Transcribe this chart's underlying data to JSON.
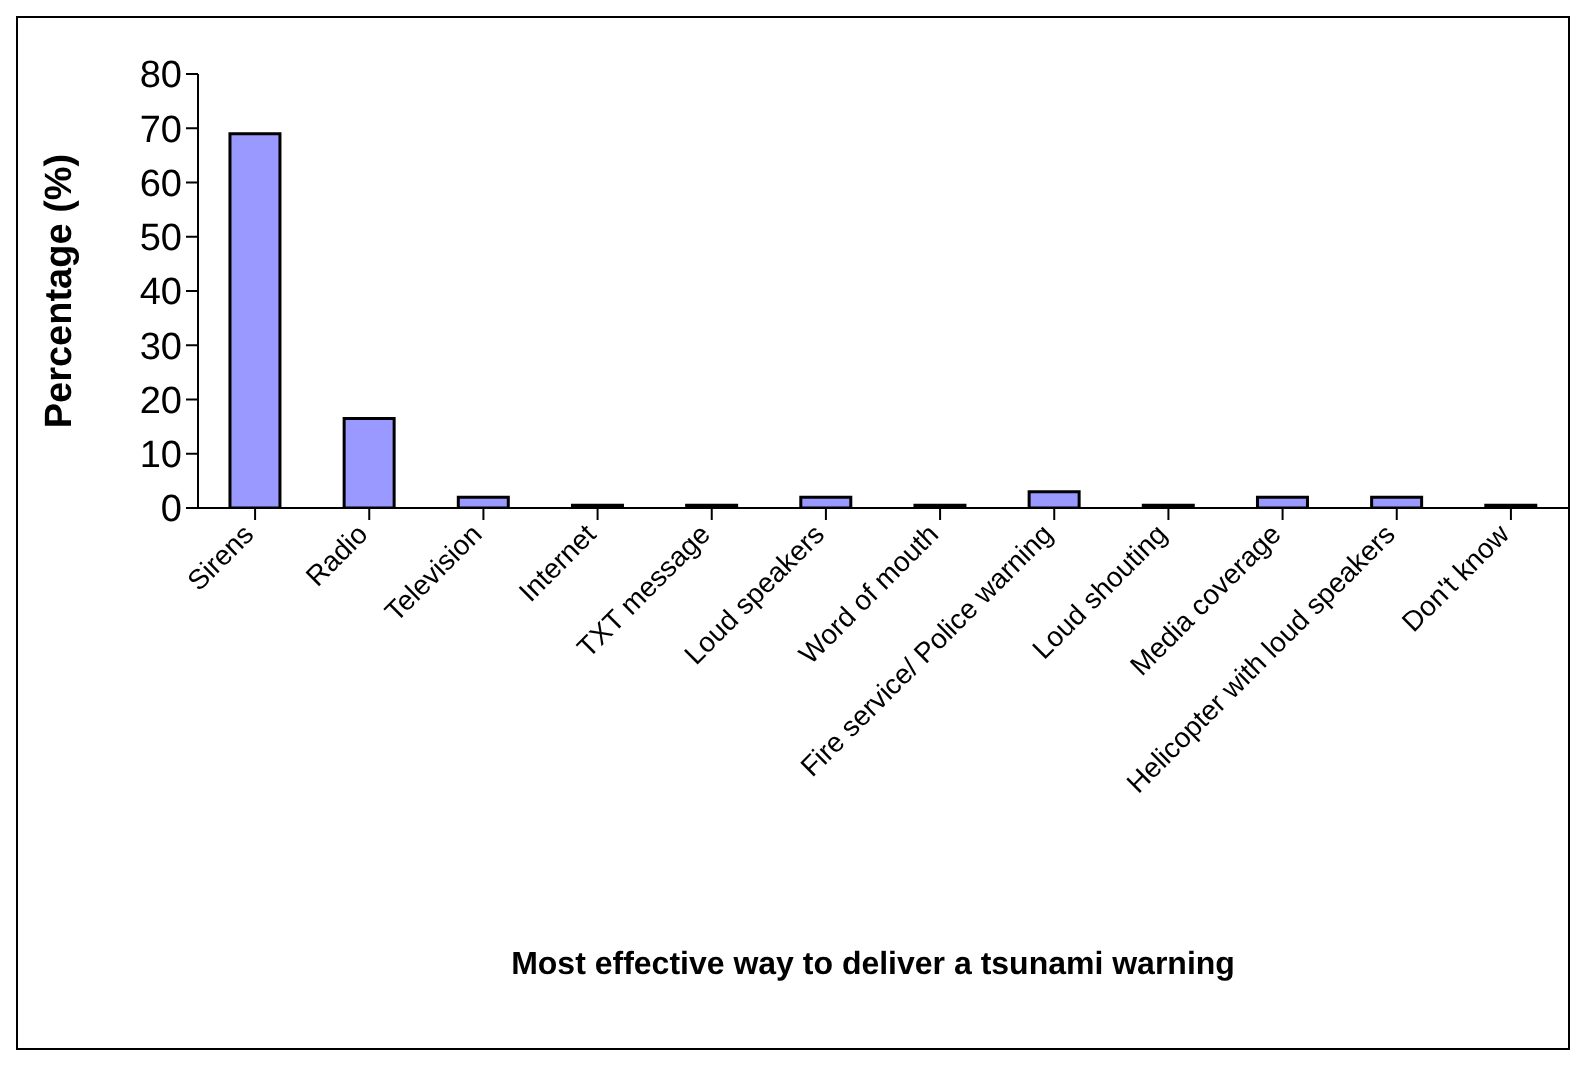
{
  "chart_data": {
    "type": "bar",
    "xlabel": "Most effective way to deliver a tsunami warning",
    "ylabel": "Percentage (%)",
    "categories": [
      "Sirens",
      "Radio",
      "Television",
      "Internet",
      "TXT message",
      "Loud speakers",
      "Word of mouth",
      "Fire service/ Police warning",
      "Loud shouting",
      "Media coverage",
      "Helicopter with loud speakers",
      "Don't know"
    ],
    "values": [
      69,
      16.5,
      2,
      0.5,
      0.5,
      2,
      0.5,
      3,
      0.5,
      2,
      2,
      0.5
    ],
    "color": "#9999ff",
    "ylim": [
      0,
      80
    ],
    "yticks": [
      0,
      10,
      20,
      30,
      40,
      50,
      60,
      70,
      80
    ],
    "grid": false,
    "legend": false
  }
}
